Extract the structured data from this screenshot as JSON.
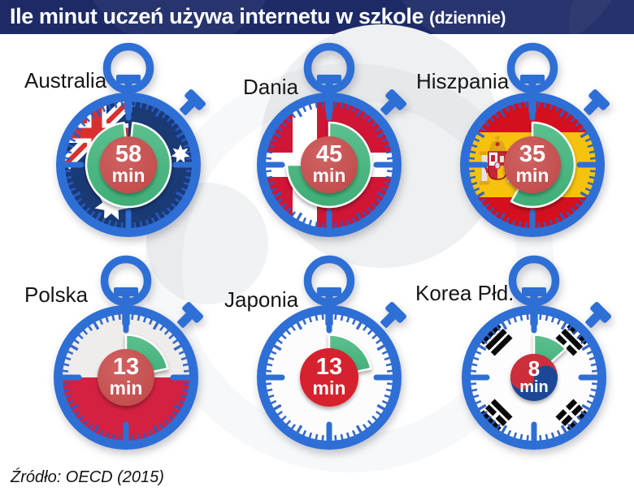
{
  "header": {
    "title": "Ile minut uczeń używa internetu w szkole",
    "title_suffix": "(dziennie)"
  },
  "footer": {
    "source": "Źródło: OECD (2015)"
  },
  "chart_data": {
    "type": "pictorial-gauge",
    "title": "Ile minut uczeń używa internetu w szkole (dziennie)",
    "unit": "min",
    "scale_max": 60,
    "categories": [
      "Australia",
      "Dania",
      "Hiszpania",
      "Polska",
      "Japonia",
      "Korea Płd."
    ],
    "values": [
      58,
      45,
      35,
      13,
      13,
      8
    ],
    "source": "Źródło: OECD (2015)",
    "items": [
      {
        "country": "Australia",
        "minutes": 58,
        "flag": "australia",
        "arc_style": "donut"
      },
      {
        "country": "Dania",
        "minutes": 45,
        "flag": "denmark",
        "arc_style": "donut"
      },
      {
        "country": "Hiszpania",
        "minutes": 35,
        "flag": "spain",
        "arc_style": "donut"
      },
      {
        "country": "Polska",
        "minutes": 13,
        "flag": "poland",
        "arc_style": "sector"
      },
      {
        "country": "Japonia",
        "minutes": 13,
        "flag": "japan",
        "arc_style": "sector"
      },
      {
        "country": "Korea Płd.",
        "minutes": 8,
        "flag": "south-korea",
        "arc_style": "sector"
      }
    ]
  },
  "colors": {
    "header_bg": "#1d2a66",
    "watch_blue": "#2e6fd6",
    "tick_blue": "rgba(39,92,196,0.92)",
    "green_light": "#5cc08f",
    "green_dark": "#3fae76",
    "bubble_light": "#d06362",
    "bubble_dark": "#bf4847",
    "text_white": "#ffffff",
    "flags": {
      "australia": {
        "field": "#1a3a76",
        "cross_red": "#d8302f",
        "white": "#ffffff"
      },
      "denmark": {
        "field": "#d01535",
        "cross": "#ffffff"
      },
      "spain": {
        "red": "#d4101f",
        "yellow": "#f6c20e",
        "gold": "#dfa714",
        "crimson": "#c32733",
        "pillar": "#e7e3d8"
      },
      "poland": {
        "white": "#efedec",
        "red": "#d42142"
      },
      "japan": {
        "field": "#fcfcfc",
        "sun": "#d5202e"
      },
      "south-korea": {
        "field": "#fdfdfd",
        "taegeuk_red": "#cd2e3a",
        "taegeuk_blue": "#1d4796",
        "trigram": "#0a0a0a"
      }
    }
  }
}
